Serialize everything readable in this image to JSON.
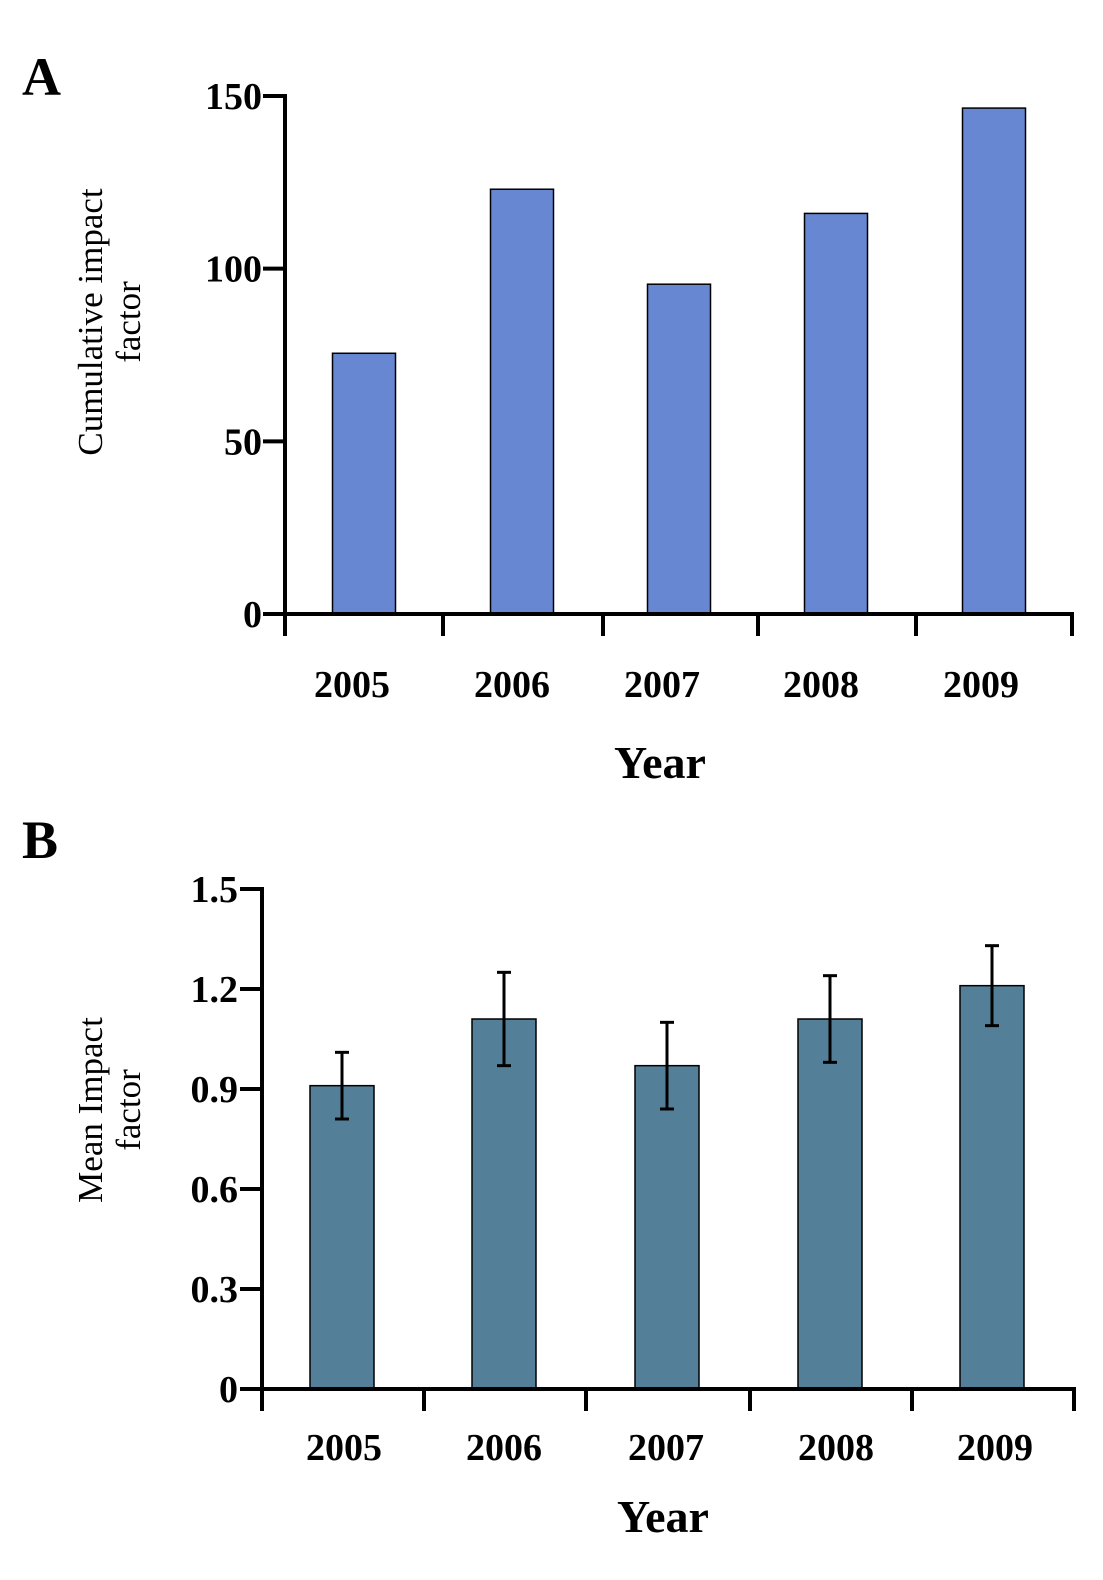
{
  "chart_data": [
    {
      "panel": "A",
      "type": "bar",
      "categories": [
        "2005",
        "2006",
        "2007",
        "2008",
        "2009"
      ],
      "values": [
        75.5,
        123,
        95.5,
        116,
        146.5
      ],
      "xlabel": "Year",
      "ylabel_lines": [
        "Cumulative impact",
        "factor"
      ],
      "ylim": [
        0,
        150
      ],
      "yticks": [
        "0",
        "50",
        "100",
        "150"
      ],
      "ytick_values": [
        0,
        50,
        100,
        150
      ],
      "bar_color": "#6787d3",
      "grid": false
    },
    {
      "panel": "B",
      "type": "bar",
      "categories": [
        "2005",
        "2006",
        "2007",
        "2008",
        "2009"
      ],
      "values": [
        0.91,
        1.11,
        0.97,
        1.11,
        1.21
      ],
      "error": [
        0.1,
        0.14,
        0.13,
        0.13,
        0.12
      ],
      "xlabel": "Year",
      "ylabel_lines": [
        "Mean Impact",
        "factor"
      ],
      "ylim": [
        0,
        1.5
      ],
      "yticks": [
        "0",
        "0.3",
        "0.6",
        "0.9",
        "1.2",
        "1.5"
      ],
      "ytick_values": [
        0,
        0.3,
        0.6,
        0.9,
        1.2,
        1.5
      ],
      "bar_color": "#538098",
      "grid": false
    }
  ]
}
